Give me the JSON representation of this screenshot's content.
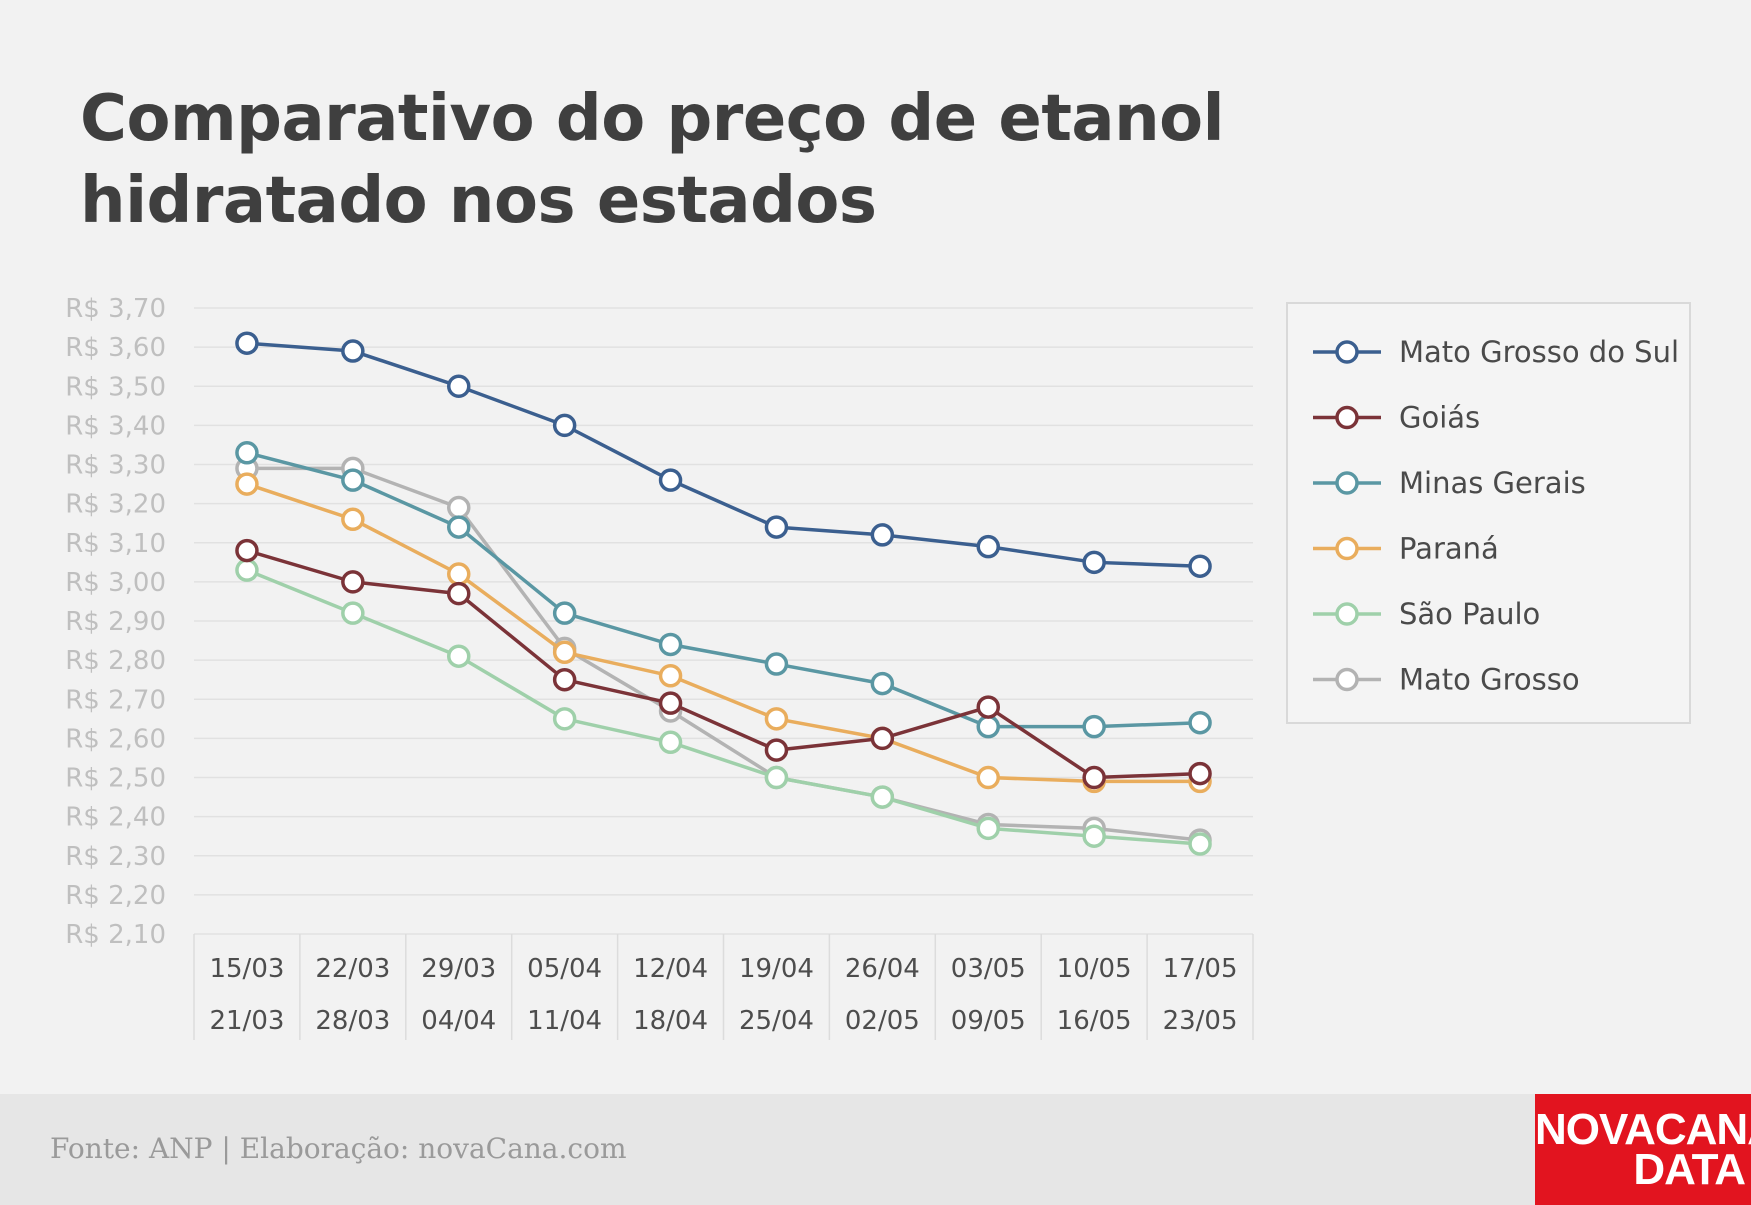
{
  "title": "Comparativo do preço de etanol hidratado nos estados",
  "chart_data": {
    "type": "line",
    "categories": [
      {
        "start": "15/03",
        "end": "21/03"
      },
      {
        "start": "22/03",
        "end": "28/03"
      },
      {
        "start": "29/03",
        "end": "04/04"
      },
      {
        "start": "05/04",
        "end": "11/04"
      },
      {
        "start": "12/04",
        "end": "18/04"
      },
      {
        "start": "19/04",
        "end": "25/04"
      },
      {
        "start": "26/04",
        "end": "02/05"
      },
      {
        "start": "03/05",
        "end": "09/05"
      },
      {
        "start": "10/05",
        "end": "16/05"
      },
      {
        "start": "17/05",
        "end": "23/05"
      }
    ],
    "y_ticks": [
      "R$ 3,70",
      "R$ 3,60",
      "R$ 3,50",
      "R$ 3,40",
      "R$ 3,30",
      "R$ 3,20",
      "R$ 3,10",
      "R$ 3,00",
      "R$ 2,90",
      "R$ 2,80",
      "R$ 2,70",
      "R$ 2,60",
      "R$ 2,50",
      "R$ 2,40",
      "R$ 2,30",
      "R$ 2,20",
      "R$ 2,10"
    ],
    "ylim": [
      2.1,
      3.7
    ],
    "grid": true,
    "legend_position": "right",
    "series": [
      {
        "name": "Mato Grosso do Sul",
        "color": "#3b5f8f",
        "values": [
          3.61,
          3.59,
          3.5,
          3.4,
          3.26,
          3.14,
          3.12,
          3.09,
          3.05,
          3.04
        ]
      },
      {
        "name": "Goiás",
        "color": "#7b3338",
        "values": [
          3.08,
          3.0,
          2.97,
          2.75,
          2.69,
          2.57,
          2.6,
          2.68,
          2.5,
          2.51
        ]
      },
      {
        "name": "Minas Gerais",
        "color": "#5a97a3",
        "values": [
          3.33,
          3.26,
          3.14,
          2.92,
          2.84,
          2.79,
          2.74,
          2.63,
          2.63,
          2.64
        ]
      },
      {
        "name": "Paraná",
        "color": "#e9ad5d",
        "values": [
          3.25,
          3.16,
          3.02,
          2.82,
          2.76,
          2.65,
          2.6,
          2.5,
          2.49,
          2.49
        ]
      },
      {
        "name": "São Paulo",
        "color": "#9fd0aa",
        "values": [
          3.03,
          2.92,
          2.81,
          2.65,
          2.59,
          2.5,
          2.45,
          2.37,
          2.35,
          2.33
        ]
      },
      {
        "name": "Mato Grosso",
        "color": "#b3b3b3",
        "values": [
          3.29,
          3.29,
          3.19,
          2.83,
          2.67,
          2.5,
          2.45,
          2.38,
          2.37,
          2.34
        ]
      }
    ]
  },
  "footer": {
    "source": "Fonte: ANP | Elaboração: novaCana.com",
    "logo_line1": "NOVACANA",
    "logo_line2": "DATA"
  }
}
